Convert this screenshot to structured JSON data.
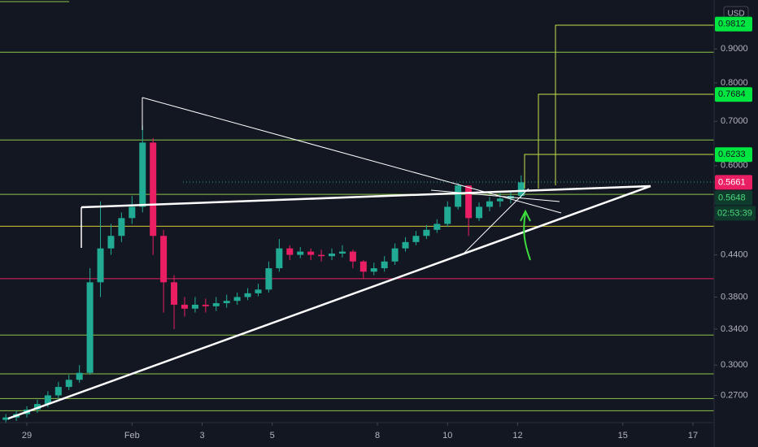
{
  "chart_data": {
    "type": "candlestick",
    "currency": "USD",
    "x": [
      -0.6,
      -0.3,
      0,
      0.3,
      0.6,
      0.9,
      1.2,
      1.5,
      1.8,
      2.1,
      2.4,
      2.7,
      3.0,
      3.3,
      3.6,
      3.9,
      4.2,
      4.5,
      4.8,
      5.1,
      5.4,
      5.7,
      6.0,
      6.3,
      6.6,
      6.9,
      7.2,
      7.5,
      7.8,
      8.1,
      8.4,
      8.7,
      9.0,
      9.3,
      9.6,
      9.9,
      10.2,
      10.5,
      10.8,
      11.1,
      11.4,
      11.7,
      12.0,
      12.3,
      12.6,
      12.9,
      13.2,
      13.5,
      13.8,
      14.1
    ],
    "open": [
      0.248,
      0.25,
      0.253,
      0.257,
      0.262,
      0.27,
      0.278,
      0.285,
      0.292,
      0.4,
      0.45,
      0.47,
      0.5,
      0.52,
      0.65,
      0.47,
      0.4,
      0.37,
      0.365,
      0.37,
      0.368,
      0.372,
      0.375,
      0.38,
      0.385,
      0.39,
      0.42,
      0.45,
      0.44,
      0.445,
      0.44,
      0.438,
      0.442,
      0.445,
      0.43,
      0.415,
      0.42,
      0.43,
      0.45,
      0.46,
      0.47,
      0.48,
      0.49,
      0.52,
      0.56,
      0.5,
      0.52,
      0.53,
      0.535,
      0.54
    ],
    "high": [
      0.253,
      0.256,
      0.26,
      0.266,
      0.274,
      0.283,
      0.29,
      0.3,
      0.42,
      0.53,
      0.49,
      0.51,
      0.54,
      0.69,
      0.66,
      0.48,
      0.41,
      0.38,
      0.38,
      0.378,
      0.38,
      0.383,
      0.386,
      0.392,
      0.398,
      0.43,
      0.465,
      0.455,
      0.452,
      0.45,
      0.448,
      0.45,
      0.455,
      0.448,
      0.432,
      0.428,
      0.438,
      0.458,
      0.468,
      0.478,
      0.488,
      0.498,
      0.53,
      0.565,
      0.558,
      0.528,
      0.538,
      0.545,
      0.548,
      0.58
    ],
    "low": [
      0.245,
      0.247,
      0.25,
      0.254,
      0.259,
      0.267,
      0.275,
      0.282,
      0.29,
      0.38,
      0.44,
      0.46,
      0.49,
      0.51,
      0.44,
      0.36,
      0.34,
      0.355,
      0.36,
      0.36,
      0.362,
      0.366,
      0.37,
      0.376,
      0.381,
      0.386,
      0.415,
      0.432,
      0.435,
      0.432,
      0.43,
      0.432,
      0.436,
      0.42,
      0.405,
      0.41,
      0.415,
      0.425,
      0.445,
      0.455,
      0.465,
      0.475,
      0.485,
      0.515,
      0.47,
      0.495,
      0.512,
      0.52,
      0.526,
      0.535
    ],
    "close": [
      0.25,
      0.253,
      0.257,
      0.262,
      0.27,
      0.278,
      0.285,
      0.292,
      0.4,
      0.45,
      0.47,
      0.5,
      0.52,
      0.65,
      0.47,
      0.4,
      0.37,
      0.365,
      0.37,
      0.368,
      0.372,
      0.375,
      0.38,
      0.385,
      0.39,
      0.42,
      0.45,
      0.44,
      0.445,
      0.44,
      0.438,
      0.442,
      0.445,
      0.43,
      0.415,
      0.42,
      0.43,
      0.45,
      0.46,
      0.47,
      0.48,
      0.49,
      0.52,
      0.56,
      0.5,
      0.52,
      0.53,
      0.535,
      0.54,
      0.566
    ],
    "up_color": "#22ab94",
    "down_color": "#e91e63",
    "log_scale": true,
    "xlim": [
      -0.766,
      19.65
    ],
    "ylim": [
      0.2456,
      1.067
    ],
    "xticks": [
      {
        "value": 0,
        "label": "29"
      },
      {
        "value": 3,
        "label": "Feb"
      },
      {
        "value": 5,
        "label": "3"
      },
      {
        "value": 7,
        "label": "5"
      },
      {
        "value": 10,
        "label": "8"
      },
      {
        "value": 12,
        "label": "10"
      },
      {
        "value": 14,
        "label": "12"
      },
      {
        "value": 17,
        "label": "15"
      },
      {
        "value": 19,
        "label": "17"
      }
    ],
    "yticks": [
      {
        "value": 0.9,
        "label": "0.9000"
      },
      {
        "value": 0.8,
        "label": "0.8000"
      },
      {
        "value": 0.7,
        "label": "0.7000"
      },
      {
        "value": 0.6,
        "label": "0.6000"
      },
      {
        "value": 0.44,
        "label": "0.4400"
      },
      {
        "value": 0.38,
        "label": "0.3800"
      },
      {
        "value": 0.34,
        "label": "0.3400"
      },
      {
        "value": 0.3,
        "label": "0.3000"
      },
      {
        "value": 0.27,
        "label": "0.2700"
      }
    ],
    "levels": [
      {
        "value": 0.89,
        "color": "#8bc34a"
      },
      {
        "value": 0.656,
        "color": "#8bc34a"
      },
      {
        "value": 0.543,
        "color": "#8bc34a"
      },
      {
        "value": 0.486,
        "color": "#d4c83a"
      },
      {
        "value": 0.405,
        "color": "#e91e63"
      },
      {
        "value": 0.333,
        "color": "#8bc34a"
      },
      {
        "value": 0.291,
        "color": "#8bc34a"
      },
      {
        "value": 0.267,
        "color": "#8bc34a"
      },
      {
        "value": 0.256,
        "color": "#8bc34a"
      }
    ],
    "price_tags": [
      {
        "value": 0.9812,
        "label": "0.9812",
        "bg": "#00e640",
        "fg": "#131722"
      },
      {
        "value": 0.7684,
        "label": "0.7684",
        "bg": "#00e640",
        "fg": "#131722"
      },
      {
        "value": 0.6233,
        "label": "0.6233",
        "bg": "#00e640",
        "fg": "#131722"
      },
      {
        "value": 0.5661,
        "label": "0.5661",
        "bg": "#e91e63",
        "fg": "#ffffff"
      },
      {
        "value": 0.5648,
        "label": "0.5648",
        "bg": "#0f3b2c",
        "fg": "#4cd97b"
      }
    ],
    "countdown": "02:53:39"
  }
}
